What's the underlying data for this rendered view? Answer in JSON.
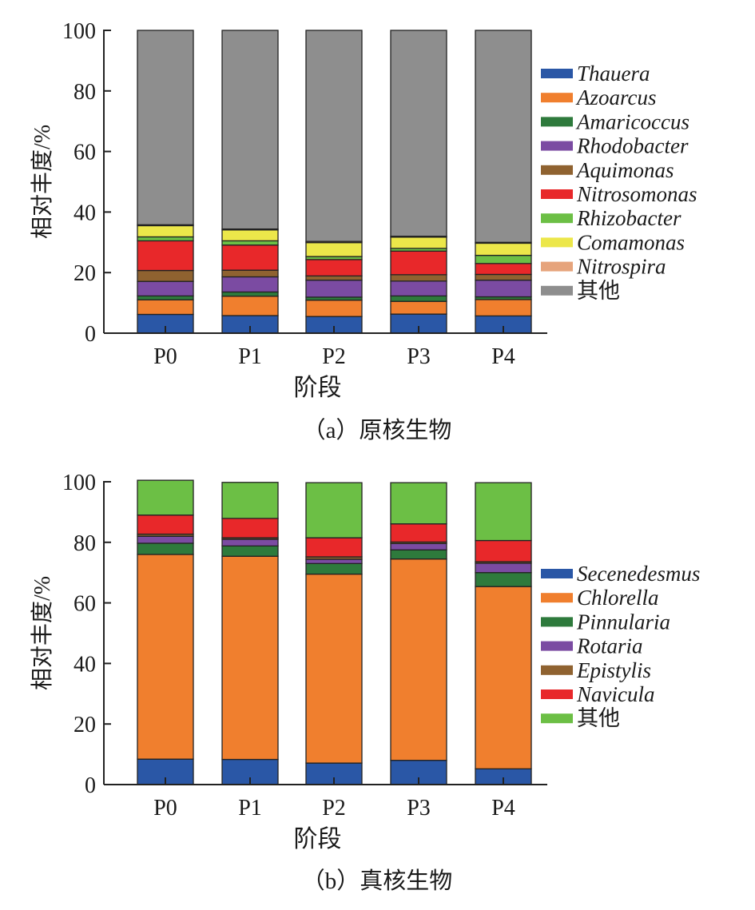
{
  "chart_data": [
    {
      "type": "bar",
      "stacked": true,
      "caption": "（a）原核生物",
      "xlabel": "阶段",
      "ylabel": "相对丰度/%",
      "ylim": [
        0,
        100
      ],
      "yticks": [
        0,
        20,
        40,
        60,
        80,
        100
      ],
      "categories": [
        "P0",
        "P1",
        "P2",
        "P3",
        "P4"
      ],
      "legend_position": "right",
      "series": [
        {
          "name": "Thauera",
          "color": "#2a57a6",
          "italic": true,
          "values": [
            6.2,
            5.8,
            5.5,
            6.3,
            5.7
          ]
        },
        {
          "name": "Azoarcus",
          "color": "#f07f2e",
          "italic": true,
          "values": [
            4.8,
            6.4,
            5.4,
            4.2,
            5.4
          ]
        },
        {
          "name": "Amaricoccus",
          "color": "#2e7a3c",
          "italic": true,
          "values": [
            1.3,
            1.4,
            1.0,
            1.8,
            0.9
          ]
        },
        {
          "name": "Rhodobacter",
          "color": "#7b4ba2",
          "italic": true,
          "values": [
            4.8,
            5.0,
            5.6,
            4.9,
            5.5
          ]
        },
        {
          "name": "Aquimonas",
          "color": "#8f6230",
          "italic": true,
          "values": [
            3.6,
            2.2,
            1.4,
            2.1,
            1.9
          ]
        },
        {
          "name": "Nitrosomonas",
          "color": "#e8282a",
          "italic": true,
          "values": [
            9.8,
            8.3,
            5.4,
            7.8,
            3.6
          ]
        },
        {
          "name": "Rhizobacter",
          "color": "#6cbf45",
          "italic": true,
          "values": [
            1.3,
            1.4,
            1.0,
            0.9,
            2.7
          ]
        },
        {
          "name": "Comamonas",
          "color": "#ece74a",
          "italic": true,
          "values": [
            3.7,
            3.6,
            4.6,
            3.7,
            4.0
          ]
        },
        {
          "name": "Nitrospira",
          "color": "#e6a47c",
          "italic": true,
          "values": [
            0.3,
            0.3,
            0.4,
            0.3,
            0.3
          ]
        },
        {
          "name": "其他",
          "color": "#8e8e8e",
          "italic": false,
          "values": [
            64.2,
            65.6,
            69.7,
            68.0,
            70.0
          ]
        }
      ]
    },
    {
      "type": "bar",
      "stacked": true,
      "caption": "（b）真核生物",
      "xlabel": "阶段",
      "ylabel": "相对丰度/%",
      "ylim": [
        0,
        100
      ],
      "yticks": [
        0,
        20,
        40,
        60,
        80,
        100
      ],
      "categories": [
        "P0",
        "P1",
        "P2",
        "P3",
        "P4"
      ],
      "legend_position": "right",
      "series": [
        {
          "name": "Secenedesmus",
          "color": "#2a57a6",
          "italic": true,
          "values": [
            8.4,
            8.3,
            7.1,
            8.0,
            5.2
          ]
        },
        {
          "name": "Chlorella",
          "color": "#f07f2e",
          "italic": true,
          "values": [
            67.6,
            67.1,
            62.4,
            66.5,
            60.2
          ]
        },
        {
          "name": "Pinnularia",
          "color": "#2e7a3c",
          "italic": true,
          "values": [
            3.7,
            3.4,
            3.5,
            3.0,
            4.6
          ]
        },
        {
          "name": "Rotaria",
          "color": "#7b4ba2",
          "italic": true,
          "values": [
            2.3,
            2.2,
            1.4,
            2.1,
            3.1
          ]
        },
        {
          "name": "Epistylis",
          "color": "#8f6230",
          "italic": true,
          "values": [
            0.7,
            0.5,
            0.8,
            0.5,
            0.5
          ]
        },
        {
          "name": "Navicula",
          "color": "#e8282a",
          "italic": true,
          "values": [
            6.3,
            6.4,
            6.3,
            6.0,
            7.0
          ]
        },
        {
          "name": "其他",
          "color": "#6cbf45",
          "italic": false,
          "values": [
            11.5,
            11.9,
            18.2,
            13.6,
            19.1
          ]
        }
      ]
    }
  ]
}
